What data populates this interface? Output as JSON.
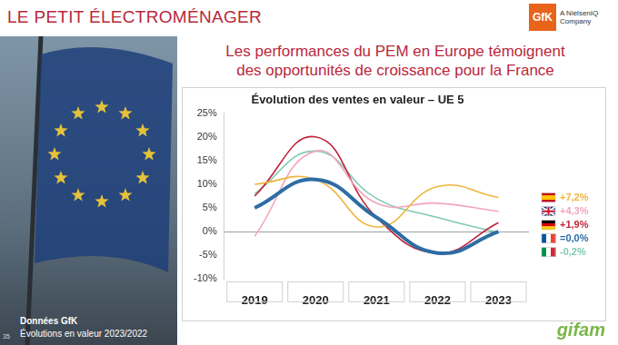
{
  "header": {
    "title": "LE PETIT ÉLECTROMÉNAGER",
    "logo": "GfK",
    "logo_subtitle": "A NielsenIQ Company"
  },
  "headline": [
    "Les performances du PEM en Europe témoignent",
    "des opportunités de croissance pour la France"
  ],
  "footer": {
    "source": "Données GfK",
    "note": "Évolutions en valeur 2023/2022",
    "page": 35,
    "brand": "gifam"
  },
  "chart_data": {
    "type": "line",
    "title": "Évolution des ventes en valeur – UE 5",
    "categories": [
      "2019",
      "2020",
      "2021",
      "2022",
      "2023"
    ],
    "ylim": [
      -10,
      25
    ],
    "yticks": [
      {
        "value": -10,
        "label": "-10%"
      },
      {
        "value": -5,
        "label": "-5%"
      },
      {
        "value": 0,
        "label": "0%"
      },
      {
        "value": 5,
        "label": "5%"
      },
      {
        "value": 10,
        "label": "10%"
      },
      {
        "value": 15,
        "label": "15%"
      },
      {
        "value": 20,
        "label": "20%"
      },
      {
        "value": 25,
        "label": "25%"
      }
    ],
    "grid": false,
    "series": [
      {
        "color": "#f0b43c",
        "line_style": "solid",
        "values": [
          10,
          11,
          1,
          9.5,
          7.2
        ],
        "value_labels": [
          null,
          null,
          null,
          null,
          "+7,2%"
        ]
      },
      {
        "color": "#f2a6bd",
        "line_style": "solid",
        "values": [
          -1,
          17,
          6,
          6,
          4.3
        ],
        "value_labels": [
          null,
          null,
          null,
          null,
          "+4,3%"
        ]
      },
      {
        "color": "#c0243a",
        "line_style": "solid",
        "values": [
          7.5,
          20,
          3,
          -4.5,
          1.9
        ],
        "value_labels": [
          null,
          null,
          null,
          null,
          "+1,9%"
        ]
      },
      {
        "color": "#2e6da4",
        "line_style": "bold",
        "values": [
          5,
          11,
          3,
          -4.5,
          0
        ],
        "value_labels": [
          null,
          null,
          null,
          null,
          "=0,0%"
        ]
      },
      {
        "color": "#7ecbb0",
        "line_style": "solid",
        "values": [
          8,
          17,
          7,
          3,
          -0.2
        ],
        "value_labels": [
          null,
          null,
          null,
          null,
          "-0,2%"
        ]
      }
    ]
  }
}
